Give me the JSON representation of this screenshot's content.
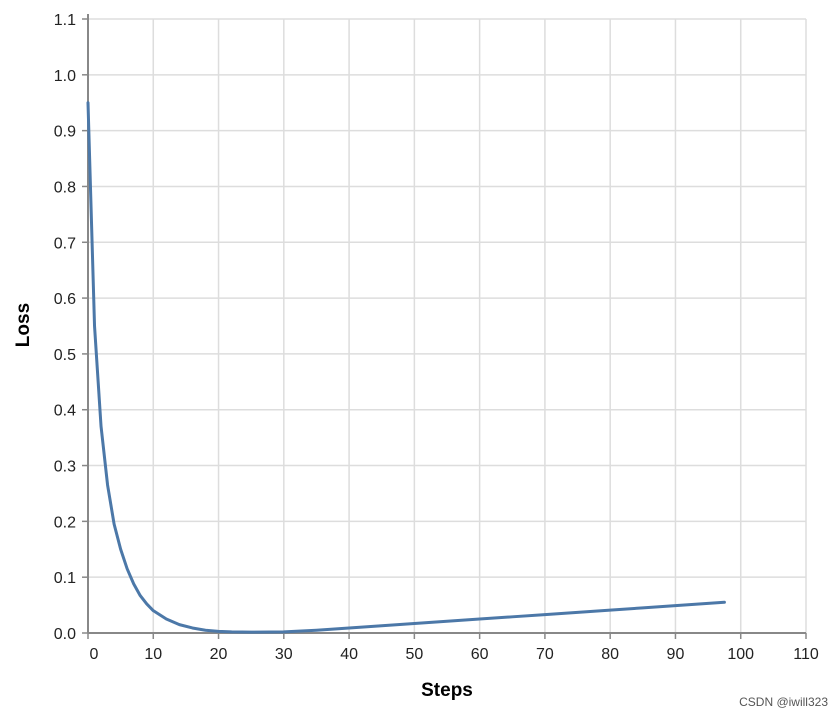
{
  "chart_data": {
    "type": "line",
    "xlabel": "Steps",
    "ylabel": "Loss",
    "xlim": [
      0,
      110
    ],
    "ylim": [
      0,
      1.1
    ],
    "x_ticks": [
      0,
      10,
      20,
      30,
      40,
      50,
      60,
      70,
      80,
      90,
      100,
      110
    ],
    "y_ticks": [
      "0.0",
      "0.1",
      "0.2",
      "0.3",
      "0.4",
      "0.5",
      "0.6",
      "0.7",
      "0.8",
      "0.9",
      "1.0",
      "1.1"
    ],
    "grid": true,
    "line_color": "#4c78a8",
    "series": [
      {
        "x": [
          0,
          1,
          2,
          3,
          4,
          5,
          6,
          7,
          8,
          9,
          10,
          12,
          14,
          16,
          18,
          20,
          22,
          25,
          28,
          30,
          35,
          40,
          45,
          50,
          55,
          60,
          65,
          70,
          75,
          80,
          85,
          90,
          95,
          97.5
        ],
        "y": [
          0.95,
          0.55,
          0.37,
          0.265,
          0.195,
          0.15,
          0.115,
          0.088,
          0.067,
          0.052,
          0.04,
          0.025,
          0.015,
          0.009,
          0.005,
          0.003,
          0.002,
          0.0015,
          0.0018,
          0.002,
          0.005,
          0.009,
          0.013,
          0.017,
          0.021,
          0.025,
          0.029,
          0.033,
          0.037,
          0.041,
          0.045,
          0.049,
          0.053,
          0.055
        ]
      }
    ]
  },
  "watermark": "CSDN @iwill323"
}
